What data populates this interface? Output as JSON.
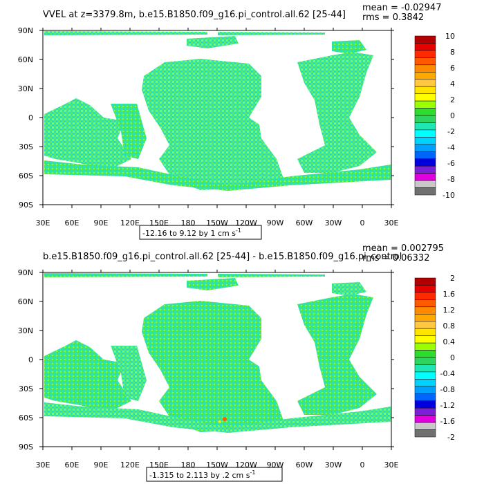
{
  "chart_data": [
    {
      "type": "heatmap",
      "title": "VVEL at z=3379.8m, b.e15.B1850.f09_g16.pi_control.all.62 [25-44]",
      "stats": [
        "mean = -0.02947",
        "rms = 0.3842"
      ],
      "range_label": "-12.16 to 9.12 by 1 cm s",
      "range_superscript": "-1",
      "xlim": [
        30,
        390
      ],
      "ylim": [
        -90,
        90
      ],
      "x_ticks": [
        "30E",
        "60E",
        "90E",
        "120E",
        "150E",
        "180",
        "150W",
        "120W",
        "90W",
        "60W",
        "30W",
        "0",
        "30E"
      ],
      "y_ticks": [
        "90N",
        "60N",
        "30N",
        "0",
        "30S",
        "60S",
        "90S"
      ],
      "colorbar_labels": [
        "10",
        "8",
        "6",
        "4",
        "2",
        "0",
        "-2",
        "-4",
        "-6",
        "-8",
        "-10"
      ],
      "colorbar_colors": [
        "#b40000",
        "#e60000",
        "#ff2a00",
        "#ff5a00",
        "#ff8a00",
        "#ffa800",
        "#ffc840",
        "#ffe400",
        "#ffff00",
        "#9cff00",
        "#2edc2e",
        "#2ed45e",
        "#20e6b4",
        "#00ffff",
        "#00d2ff",
        "#00a0ff",
        "#0064ff",
        "#0000dc",
        "#7a20d8",
        "#e000e0",
        "#c8c8c8",
        "#707070"
      ],
      "dominant_value_range": [
        -1,
        1
      ]
    },
    {
      "type": "heatmap",
      "title": "b.e15.B1850.f09_g16.pi_control.all.62 [25-44] - b.e15.B1850.f09_g16.pi_control",
      "stats": [
        "mean = 0.002795",
        "rms = 0.06332"
      ],
      "range_label": "-1.315 to 2.113 by .2 cm s",
      "range_superscript": "-1",
      "xlim": [
        30,
        390
      ],
      "ylim": [
        -90,
        90
      ],
      "x_ticks": [
        "30E",
        "60E",
        "90E",
        "120E",
        "150E",
        "180",
        "150W",
        "120W",
        "90W",
        "60W",
        "30W",
        "0",
        "30E"
      ],
      "y_ticks": [
        "90N",
        "60N",
        "30N",
        "0",
        "30S",
        "60S",
        "90S"
      ],
      "colorbar_labels": [
        "2",
        "1.6",
        "1.2",
        "0.8",
        "0.4",
        "0",
        "-0.4",
        "-0.8",
        "-1.2",
        "-1.6",
        "-2"
      ],
      "colorbar_colors": [
        "#b40000",
        "#e60000",
        "#ff2a00",
        "#ff5a00",
        "#ff8a00",
        "#ffa800",
        "#ffc840",
        "#ffe400",
        "#ffff00",
        "#9cff00",
        "#2edc2e",
        "#2ed45e",
        "#20e6b4",
        "#00ffff",
        "#00d2ff",
        "#00a0ff",
        "#0064ff",
        "#0000dc",
        "#7a20d8",
        "#e000e0",
        "#c8c8c8",
        "#707070"
      ],
      "dominant_value_range": [
        -0.2,
        0.2
      ]
    }
  ]
}
